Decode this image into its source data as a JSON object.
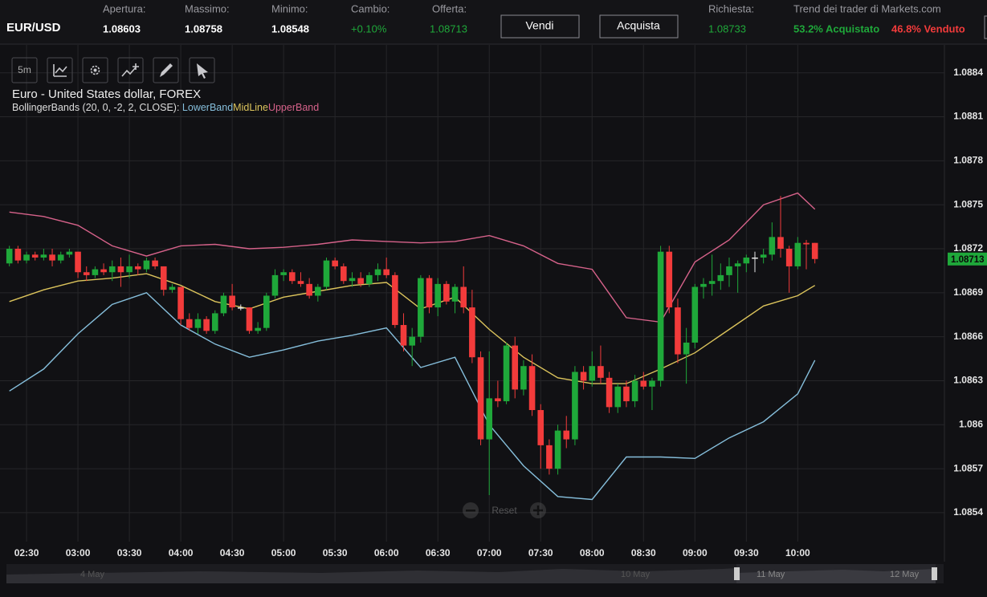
{
  "header": {
    "symbol": "EUR/USD",
    "stats": [
      {
        "label": "Apertura:",
        "value": "1.08603"
      },
      {
        "label": "Massimo:",
        "value": "1.08758"
      },
      {
        "label": "Minimo:",
        "value": "1.08548"
      },
      {
        "label": "Cambio:",
        "value": "+0.10%"
      },
      {
        "label": "Offerta:",
        "value": "1.08713"
      }
    ],
    "buttons": [
      "Vendi",
      "Acquista"
    ],
    "ask": {
      "label": "Richiesta:",
      "value": "1.08733"
    },
    "trend": {
      "label": "Trend dei trader di Markets.com",
      "buy": "53.2% Acquistato",
      "sell": "46.8% Venduto"
    }
  },
  "toolbar": {
    "interval": "5m"
  },
  "chart_data": {
    "type": "candlestick",
    "title": "Euro - United States dollar, FOREX",
    "indicator": "BollingerBands (20, 0, -2, 2, CLOSE):",
    "categories": [
      null,
      null,
      "02:30",
      null,
      null,
      null,
      null,
      null,
      "03:00",
      null,
      null,
      null,
      null,
      null,
      "03:30",
      null,
      null,
      null,
      null,
      null,
      "04:00",
      null,
      null,
      null,
      null,
      null,
      "04:30",
      null,
      null,
      null,
      null,
      null,
      "05:00",
      null,
      null,
      null,
      null,
      null,
      "05:30",
      null,
      null,
      null,
      null,
      null,
      "06:00",
      null,
      null,
      null,
      null,
      null,
      "06:30",
      null,
      null,
      null,
      null,
      null,
      "07:00",
      null,
      null,
      null,
      null,
      null,
      "07:30",
      null,
      null,
      null,
      null,
      null,
      "08:00",
      null,
      null,
      null,
      null,
      null,
      "08:30",
      null,
      null,
      null,
      null,
      null,
      "09:00",
      null,
      null,
      null,
      null,
      null,
      "09:30",
      null,
      null,
      null,
      null,
      null,
      "10:00",
      null,
      null
    ],
    "open": [
      1.0871,
      1.0872,
      1.08712,
      1.08716,
      1.08714,
      1.08716,
      1.08712,
      1.08716,
      1.08718,
      1.08704,
      1.08702,
      1.08706,
      1.08704,
      1.08708,
      1.08704,
      1.08708,
      1.08706,
      1.08712,
      1.08708,
      1.08692,
      1.08694,
      1.08672,
      1.08666,
      1.08672,
      1.08664,
      1.08676,
      1.08688,
      1.0868,
      1.0868,
      1.08664,
      1.08666,
      1.08688,
      1.08702,
      1.08704,
      1.08698,
      1.08696,
      1.08688,
      1.08694,
      1.08712,
      1.08708,
      1.08698,
      1.087,
      1.08696,
      1.08702,
      1.08706,
      1.08702,
      1.08668,
      1.08654,
      1.0866,
      1.087,
      1.0868,
      1.08696,
      1.08684,
      1.08694,
      1.0868,
      1.08646,
      1.0859,
      1.08618,
      1.08616,
      1.08654,
      1.08624,
      1.0864,
      1.0861,
      1.08586,
      1.0857,
      1.08596,
      1.0859,
      1.08636,
      1.0863,
      1.0864,
      1.08632,
      1.08612,
      1.08626,
      1.08616,
      1.0863,
      1.08626,
      1.0863,
      1.08718,
      1.0868,
      1.08648,
      1.08656,
      1.08694,
      1.08696,
      1.08698,
      1.08702,
      1.08708,
      1.0871,
      1.08714,
      1.08714,
      1.08716,
      1.08728,
      1.0872,
      1.08708,
      1.08724,
      1.08724
    ],
    "high": [
      1.08722,
      1.08722,
      1.08718,
      1.08718,
      1.0872,
      1.0872,
      1.08718,
      1.0872,
      1.08718,
      1.08708,
      1.08708,
      1.0871,
      1.08712,
      1.08714,
      1.08716,
      1.0871,
      1.08714,
      1.08714,
      1.08708,
      1.08696,
      1.08694,
      1.08676,
      1.08676,
      1.08674,
      1.08678,
      1.0869,
      1.08696,
      1.08682,
      1.0868,
      1.0867,
      1.0869,
      1.08706,
      1.08706,
      1.08706,
      1.08704,
      1.087,
      1.08696,
      1.08714,
      1.08714,
      1.0871,
      1.08704,
      1.08704,
      1.08704,
      1.0871,
      1.08714,
      1.08704,
      1.08676,
      1.08666,
      1.08702,
      1.08702,
      1.087,
      1.08698,
      1.08696,
      1.08708,
      1.08692,
      1.0865,
      1.0865,
      1.0863,
      1.08656,
      1.0866,
      1.08644,
      1.08648,
      1.08614,
      1.0859,
      1.086,
      1.08606,
      1.0864,
      1.0864,
      1.0865,
      1.08654,
      1.08636,
      1.08628,
      1.0863,
      1.08634,
      1.08636,
      1.08632,
      1.08722,
      1.08722,
      1.08686,
      1.08666,
      1.08696,
      1.087,
      1.08716,
      1.0871,
      1.08714,
      1.08712,
      1.08716,
      1.08718,
      1.0872,
      1.08738,
      1.08756,
      1.08722,
      1.08728,
      1.08726,
      1.08724
    ],
    "low": [
      1.08708,
      1.0871,
      1.0871,
      1.08712,
      1.08712,
      1.08708,
      1.0871,
      1.08714,
      1.087,
      1.08698,
      1.087,
      1.08702,
      1.08698,
      1.08694,
      1.087,
      1.08702,
      1.08704,
      1.08706,
      1.08688,
      1.0869,
      1.08668,
      1.08664,
      1.08662,
      1.08662,
      1.08662,
      1.08674,
      1.08678,
      1.08678,
      1.08662,
      1.08662,
      1.08664,
      1.08686,
      1.08698,
      1.08696,
      1.08694,
      1.08686,
      1.08684,
      1.08692,
      1.08706,
      1.08696,
      1.08694,
      1.08694,
      1.08694,
      1.08698,
      1.087,
      1.08666,
      1.0865,
      1.0864,
      1.08656,
      1.08676,
      1.08674,
      1.08682,
      1.08676,
      1.08676,
      1.08642,
      1.08586,
      1.08552,
      1.08612,
      1.08614,
      1.08618,
      1.0862,
      1.08606,
      1.0857,
      1.08566,
      1.08566,
      1.08584,
      1.08586,
      1.08624,
      1.08626,
      1.08628,
      1.08608,
      1.08608,
      1.08612,
      1.08612,
      1.08624,
      1.0861,
      1.08626,
      1.08676,
      1.08642,
      1.08628,
      1.08652,
      1.08686,
      1.08688,
      1.08692,
      1.08694,
      1.0869,
      1.08704,
      1.08704,
      1.0871,
      1.08712,
      1.08714,
      1.0869,
      1.08706,
      1.08706,
      1.0871
    ],
    "close": [
      1.0872,
      1.08712,
      1.08716,
      1.08714,
      1.08716,
      1.08712,
      1.08716,
      1.08718,
      1.08704,
      1.08702,
      1.08706,
      1.08704,
      1.08708,
      1.08704,
      1.08708,
      1.08706,
      1.08712,
      1.08708,
      1.08692,
      1.08694,
      1.08672,
      1.08666,
      1.08672,
      1.08664,
      1.08676,
      1.08688,
      1.0868,
      1.0868,
      1.08664,
      1.08666,
      1.08688,
      1.08702,
      1.08704,
      1.08698,
      1.08696,
      1.08688,
      1.08694,
      1.08712,
      1.08708,
      1.08698,
      1.087,
      1.08696,
      1.08702,
      1.08706,
      1.08702,
      1.08668,
      1.08654,
      1.0866,
      1.087,
      1.0868,
      1.08696,
      1.08684,
      1.08694,
      1.0868,
      1.08646,
      1.0859,
      1.08618,
      1.08616,
      1.08654,
      1.08624,
      1.0864,
      1.0861,
      1.08586,
      1.0857,
      1.08596,
      1.0859,
      1.08636,
      1.0863,
      1.0864,
      1.08632,
      1.08612,
      1.08626,
      1.08616,
      1.0863,
      1.08626,
      1.0863,
      1.08718,
      1.0868,
      1.08648,
      1.08656,
      1.08694,
      1.08696,
      1.08698,
      1.08702,
      1.08708,
      1.0871,
      1.08714,
      1.08714,
      1.08716,
      1.08728,
      1.0872,
      1.08708,
      1.08724,
      1.08723,
      1.08713
    ],
    "up_color": "#1fa83a",
    "down_color": "#f23b3b",
    "doji_color": "#e8e8e8",
    "series": [
      {
        "name": "LowerBand",
        "color": "#86bfdc",
        "x": [
          0,
          4,
          8,
          12,
          16,
          20,
          24,
          28,
          32,
          36,
          40,
          44,
          48,
          52,
          56,
          60,
          64,
          68,
          72,
          76,
          80,
          84,
          88,
          92,
          94
        ],
        "values": [
          1.08623,
          1.08638,
          1.08662,
          1.08682,
          1.0869,
          1.08668,
          1.08655,
          1.08646,
          1.08651,
          1.08657,
          1.08661,
          1.08666,
          1.08639,
          1.08646,
          1.086,
          1.08572,
          1.08551,
          1.08549,
          1.08578,
          1.08578,
          1.08577,
          1.08591,
          1.08602,
          1.08621,
          1.08644
        ]
      },
      {
        "name": "MidLine",
        "color": "#dcc45c",
        "x": [
          0,
          4,
          8,
          12,
          16,
          20,
          24,
          28,
          32,
          36,
          40,
          44,
          48,
          52,
          56,
          60,
          64,
          68,
          72,
          76,
          80,
          84,
          88,
          92,
          94
        ],
        "values": [
          1.08684,
          1.08692,
          1.08698,
          1.087,
          1.08703,
          1.08695,
          1.08684,
          1.08679,
          1.08687,
          1.08691,
          1.08695,
          1.08697,
          1.08679,
          1.08687,
          1.08665,
          1.08646,
          1.08632,
          1.08628,
          1.08628,
          1.08638,
          1.08649,
          1.08665,
          1.08681,
          1.08688,
          1.08695
        ]
      },
      {
        "name": "UpperBand",
        "color": "#d6628a",
        "x": [
          0,
          4,
          8,
          12,
          16,
          20,
          24,
          28,
          32,
          36,
          40,
          44,
          48,
          52,
          56,
          60,
          64,
          68,
          72,
          76,
          80,
          84,
          88,
          92,
          94
        ],
        "values": [
          1.08745,
          1.08742,
          1.08736,
          1.08722,
          1.08715,
          1.08722,
          1.08723,
          1.0872,
          1.08721,
          1.08723,
          1.08726,
          1.08725,
          1.08724,
          1.08725,
          1.08729,
          1.08722,
          1.0871,
          1.08706,
          1.08673,
          1.0867,
          1.08711,
          1.08726,
          1.0875,
          1.08758,
          1.08747
        ]
      }
    ],
    "ylim": [
      1.08523,
      1.08859
    ],
    "yticks": [
      1.0854,
      1.0857,
      1.086,
      1.0863,
      1.0866,
      1.0869,
      1.0872,
      1.0875,
      1.0878,
      1.0881,
      1.0884
    ],
    "grid": true,
    "price_tag": 1.08713,
    "price_tag_color": "#1fa83a"
  },
  "zoom": {
    "reset": "Reset"
  },
  "navigator": {
    "labels": [
      "4 May",
      "10 May",
      "11 May",
      "12 May"
    ]
  }
}
